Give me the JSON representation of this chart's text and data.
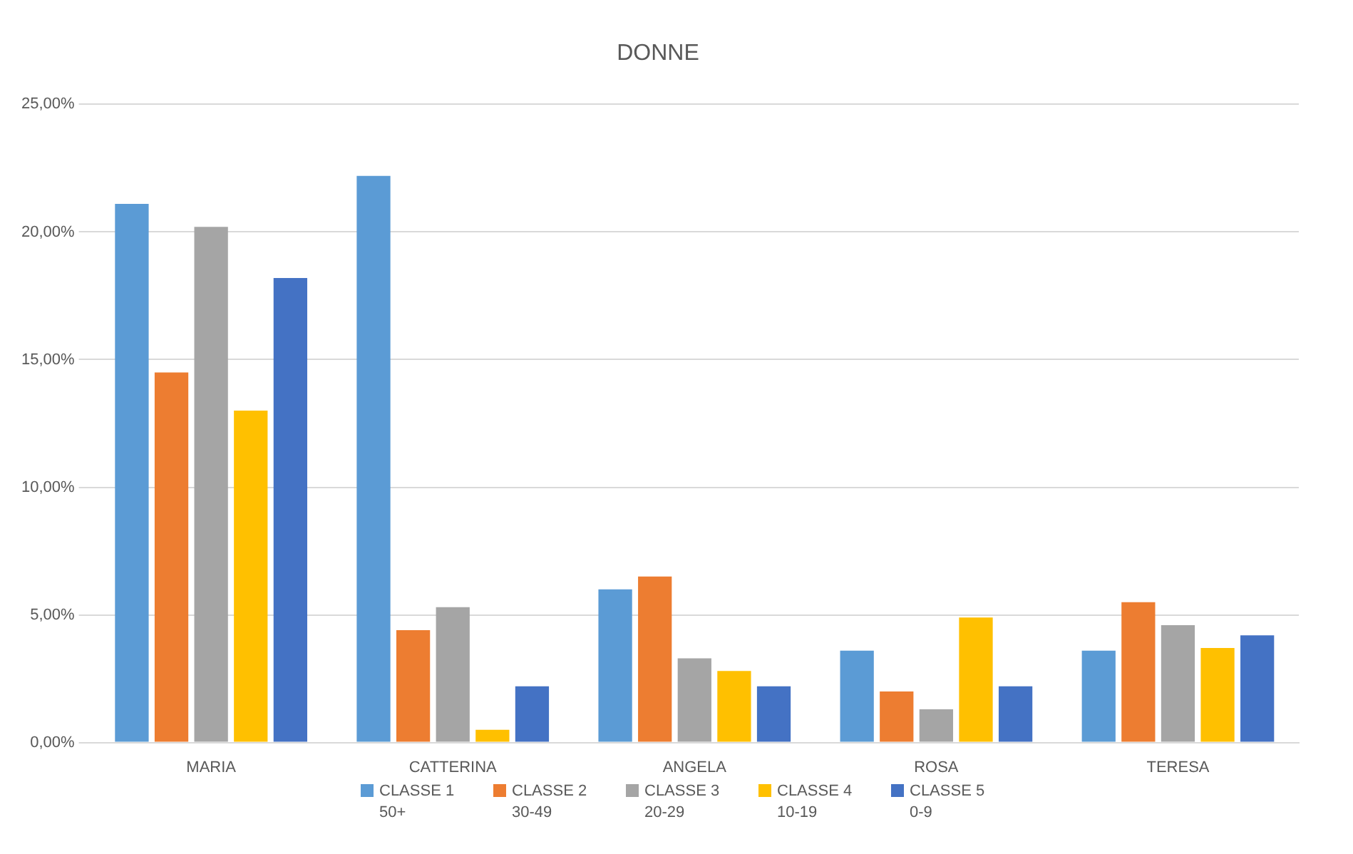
{
  "chart_data": {
    "type": "bar",
    "title": "DONNE",
    "categories": [
      "MARIA",
      "CATTERINA",
      "ANGELA",
      "ROSA",
      "TERESA"
    ],
    "series": [
      {
        "name": "CLASSE 1 50+",
        "color": "#5b9bd5",
        "values": [
          21.1,
          22.2,
          6.0,
          3.6,
          3.6
        ]
      },
      {
        "name": "CLASSE 2 30-49",
        "color": "#ed7d31",
        "values": [
          14.5,
          4.4,
          6.5,
          2.0,
          5.5
        ]
      },
      {
        "name": "CLASSE 3 20-29",
        "color": "#a5a5a5",
        "values": [
          20.2,
          5.3,
          3.3,
          1.3,
          4.6
        ]
      },
      {
        "name": "CLASSE 4 10-19",
        "color": "#ffc000",
        "values": [
          13.0,
          0.5,
          2.8,
          4.9,
          3.7
        ]
      },
      {
        "name": "CLASSE 5 0-9",
        "color": "#4472c4",
        "values": [
          18.2,
          2.2,
          2.2,
          2.2,
          4.2
        ]
      }
    ],
    "ylim": [
      0,
      25
    ],
    "yticks": [
      {
        "value": 0,
        "label": "0,00%"
      },
      {
        "value": 5,
        "label": "5,00%"
      },
      {
        "value": 10,
        "label": "10,00%"
      },
      {
        "value": 15,
        "label": "15,00%"
      },
      {
        "value": 20,
        "label": "20,00%"
      },
      {
        "value": 25,
        "label": "25,00%"
      }
    ],
    "grid": "y",
    "legend": "bottom"
  }
}
